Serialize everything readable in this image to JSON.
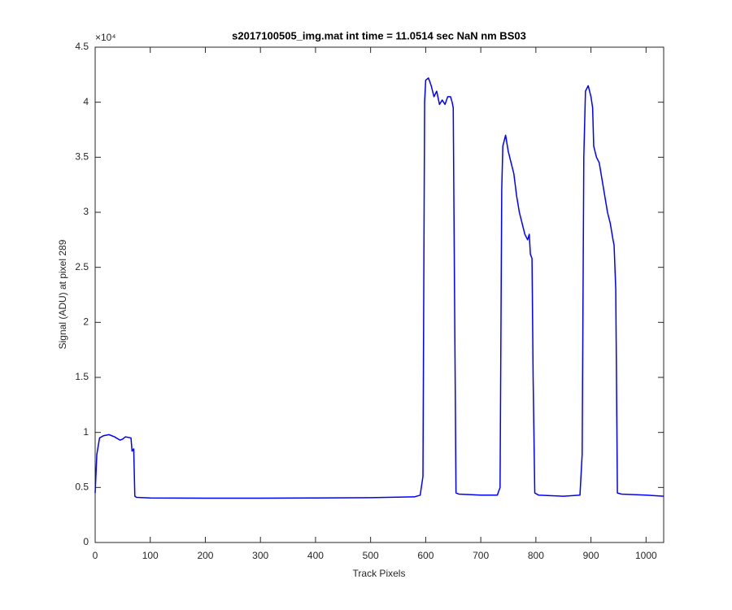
{
  "chart_data": {
    "type": "line",
    "title": "s2017100505_img.mat int time = 11.0514 sec  NaN nm BS03",
    "x_label": "Track Pixels",
    "y_label": "Signal (ADU) at pixel 289",
    "y_exponent": "×10⁴",
    "color": "#0000ff",
    "xlim": [
      0,
      1032
    ],
    "ylim": [
      0,
      4.5
    ],
    "xticks": [
      0,
      100,
      200,
      300,
      400,
      500,
      600,
      700,
      800,
      900,
      1000
    ],
    "yticks": [
      0,
      0.5,
      1,
      1.5,
      2,
      2.5,
      3,
      3.5,
      4,
      4.5
    ],
    "x": [
      0,
      3,
      8,
      15,
      25,
      35,
      45,
      50,
      55,
      65,
      67,
      70,
      72,
      75,
      100,
      200,
      300,
      400,
      500,
      580,
      590,
      595,
      598,
      600,
      605,
      610,
      615,
      620,
      625,
      630,
      635,
      640,
      645,
      648,
      650,
      652,
      655,
      660,
      700,
      730,
      735,
      738,
      740,
      745,
      750,
      755,
      760,
      765,
      770,
      775,
      780,
      785,
      788,
      790,
      793,
      795,
      798,
      805,
      850,
      880,
      884,
      887,
      890,
      895,
      900,
      903,
      905,
      910,
      915,
      920,
      925,
      930,
      935,
      940,
      942,
      945,
      948,
      955,
      1000,
      1032
    ],
    "values": [
      0.45,
      0.8,
      0.95,
      0.97,
      0.98,
      0.96,
      0.93,
      0.94,
      0.96,
      0.95,
      0.83,
      0.85,
      0.42,
      0.41,
      0.405,
      0.403,
      0.403,
      0.405,
      0.407,
      0.415,
      0.43,
      0.6,
      4.0,
      4.2,
      4.22,
      4.15,
      4.05,
      4.1,
      3.98,
      4.02,
      3.98,
      4.05,
      4.05,
      4.0,
      3.95,
      2.5,
      0.45,
      0.44,
      0.43,
      0.43,
      0.5,
      3.2,
      3.6,
      3.7,
      3.55,
      3.45,
      3.35,
      3.15,
      3.0,
      2.9,
      2.8,
      2.75,
      2.8,
      2.62,
      2.58,
      1.5,
      0.45,
      0.43,
      0.42,
      0.43,
      0.8,
      3.5,
      4.1,
      4.15,
      4.05,
      3.95,
      3.6,
      3.5,
      3.45,
      3.3,
      3.15,
      3.0,
      2.9,
      2.75,
      2.7,
      2.3,
      0.45,
      0.44,
      0.43,
      0.42
    ]
  }
}
